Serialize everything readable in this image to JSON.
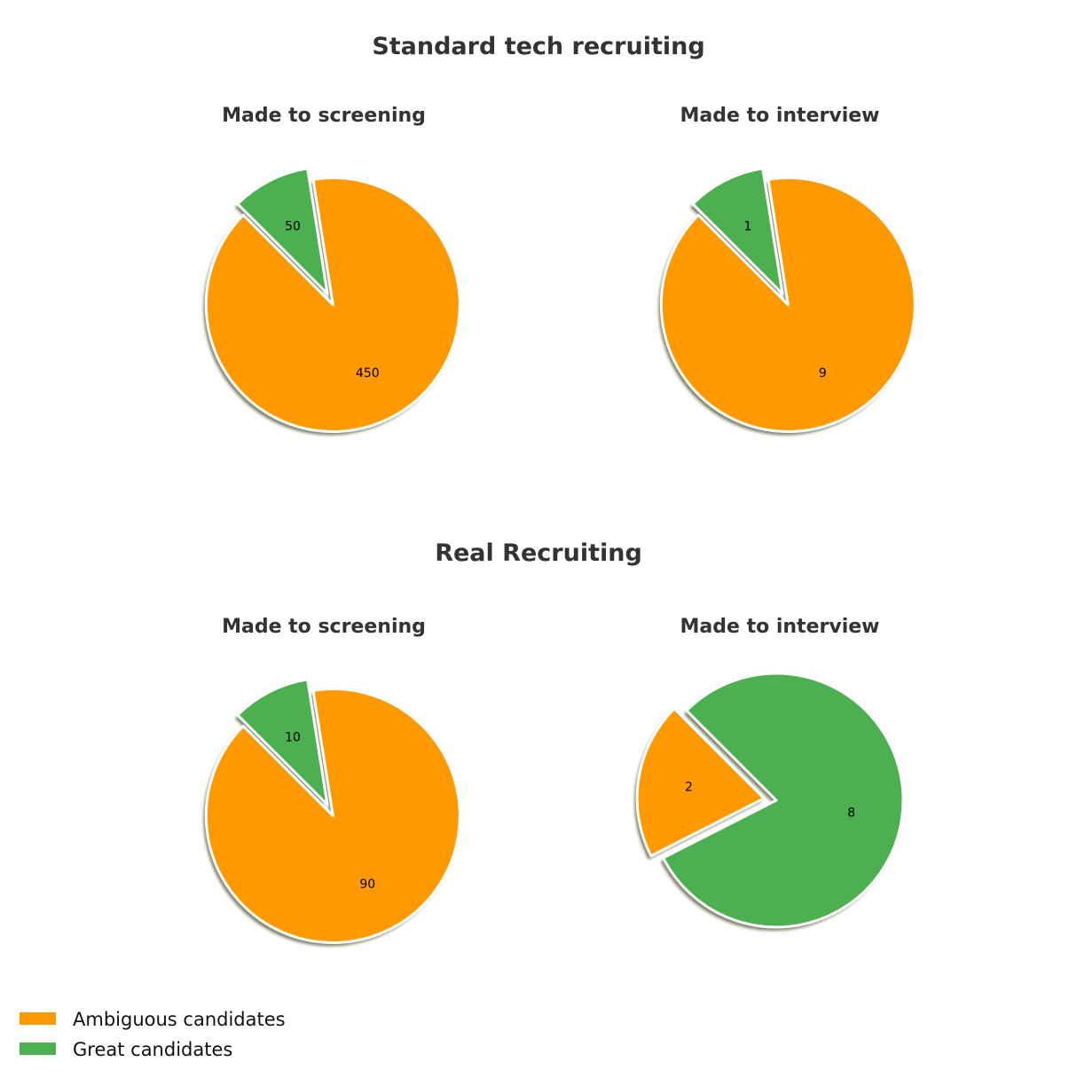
{
  "chart_data": {
    "type": "pie",
    "sections": [
      {
        "title": "Standard tech recruiting",
        "pies": [
          {
            "title": "Made to screening",
            "slices": [
              {
                "label": "Ambiguous candidates",
                "value": 450
              },
              {
                "label": "Great candidates",
                "value": 50
              }
            ]
          },
          {
            "title": "Made to interview",
            "slices": [
              {
                "label": "Ambiguous candidates",
                "value": 9
              },
              {
                "label": "Great candidates",
                "value": 1
              }
            ]
          }
        ]
      },
      {
        "title": "Real Recruiting",
        "pies": [
          {
            "title": "Made to screening",
            "slices": [
              {
                "label": "Ambiguous candidates",
                "value": 90
              },
              {
                "label": "Great candidates",
                "value": 10
              }
            ]
          },
          {
            "title": "Made to interview",
            "slices": [
              {
                "label": "Ambiguous candidates",
                "value": 2
              },
              {
                "label": "Great candidates",
                "value": 8
              }
            ]
          }
        ]
      }
    ],
    "legend": {
      "placement": "bottom-left",
      "entries": [
        "Ambiguous candidates",
        "Great candidates"
      ]
    },
    "colors": {
      "Ambiguous candidates": "#FF9900",
      "Great candidates": "#4CAF50"
    },
    "slice_order": "counterclockwise",
    "start_angle_deg": 135,
    "exploded_slice": "first",
    "shadow": true
  }
}
